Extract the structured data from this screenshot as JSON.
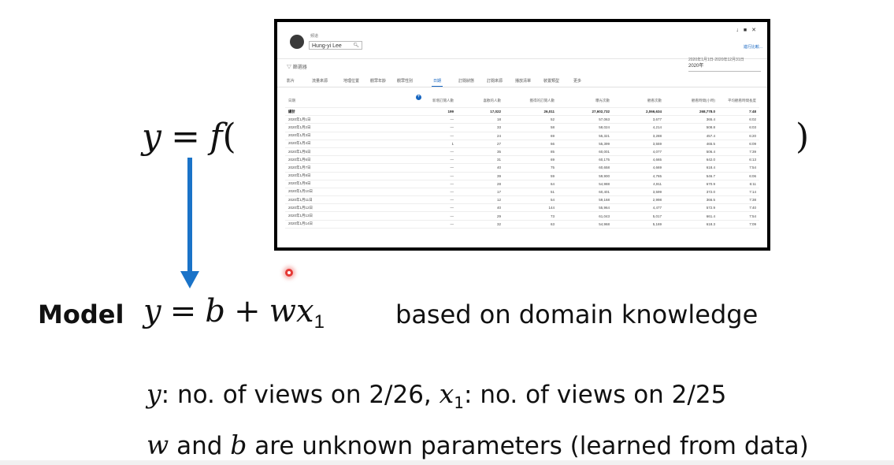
{
  "equation_top": {
    "y": "y",
    "equals": "=",
    "f": "f",
    "open_paren": "(",
    "close_paren": ")"
  },
  "embedded_screenshot": {
    "channel_label": "頻道",
    "channel_name": "Hung-yi Lee",
    "filter_label": "篩選器",
    "date_range": "2020年1月1日-2020年12月31日",
    "date_year": "2020年",
    "top_link": "進行比較...",
    "tabs": [
      "影片",
      "流量來源",
      "地理位置",
      "觀眾年齡",
      "觀眾性別",
      "日期",
      "訂閱狀態",
      "訂閱來源",
      "播放清單",
      "裝置類型",
      "更多"
    ],
    "active_tab_index": 5,
    "columns": [
      "日期",
      "新增訂閱人數",
      "喜歡的人數",
      "獲得的訂閱人數",
      "曝光次數",
      "觀看次數",
      "觀看時間(小時)",
      "平均觀看時間長度"
    ],
    "total_row": [
      "總計",
      "199",
      "17,022",
      "26,011",
      "27,602,732",
      "2,066,634",
      "268,778.0",
      "7:48"
    ],
    "rows": [
      [
        "2020年1月1日",
        "—",
        "18",
        "52",
        "57,063",
        "3,677",
        "365.4",
        "6:02"
      ],
      [
        "2020年1月2日",
        "—",
        "33",
        "58",
        "58,024",
        "4,214",
        "508.8",
        "6:03"
      ],
      [
        "2020年1月3日",
        "—",
        "24",
        "69",
        "55,321",
        "3,288",
        "457.4",
        "6:20"
      ],
      [
        "2020年1月4日",
        "1",
        "27",
        "66",
        "55,399",
        "3,559",
        "465.5",
        "6:09"
      ],
      [
        "2020年1月5日",
        "—",
        "35",
        "85",
        "60,001",
        "4,077",
        "506.4",
        "7:39"
      ],
      [
        "2020年1月6日",
        "—",
        "31",
        "69",
        "60,175",
        "4,665",
        "642.0",
        "6:13"
      ],
      [
        "2020年1月7日",
        "—",
        "40",
        "75",
        "60,658",
        "4,669",
        "618.4",
        "7:54"
      ],
      [
        "2020年1月8日",
        "—",
        "39",
        "59",
        "59,900",
        "4,765",
        "546.7",
        "6:06"
      ],
      [
        "2020年1月9日",
        "—",
        "28",
        "64",
        "54,988",
        "4,911",
        "670.9",
        "6:11"
      ],
      [
        "2020年1月10日",
        "—",
        "17",
        "51",
        "60,401",
        "3,599",
        "372.0",
        "7:14"
      ],
      [
        "2020年1月11日",
        "—",
        "12",
        "54",
        "59,168",
        "2,998",
        "366.5",
        "7:38"
      ],
      [
        "2020年1月12日",
        "—",
        "40",
        "144",
        "55,964",
        "4,477",
        "572.9",
        "7:40"
      ],
      [
        "2020年1月13日",
        "—",
        "29",
        "73",
        "61,043",
        "5,017",
        "661.4",
        "7:54"
      ],
      [
        "2020年1月14日",
        "—",
        "32",
        "63",
        "54,968",
        "5,169",
        "618.3",
        "7:09"
      ]
    ]
  },
  "model": {
    "label": "Model",
    "y": "y",
    "equals": "=",
    "b": "b",
    "plus": "+",
    "w": "w",
    "x": "x",
    "x_sub": "1",
    "note": "based on domain knowledge"
  },
  "line1": {
    "y": "y",
    "text_a": ": no. of views on 2/26, ",
    "x": "x",
    "x_sub": "1",
    "text_b": ": no. of views on 2/25"
  },
  "line2": {
    "w": "w",
    "text_a": " and ",
    "b": "b",
    "text_b": " are unknown parameters (learned from data)"
  },
  "colors": {
    "arrow": "#1a73c8",
    "pointer": "#e53935",
    "accent_tab": "#1565c0"
  }
}
